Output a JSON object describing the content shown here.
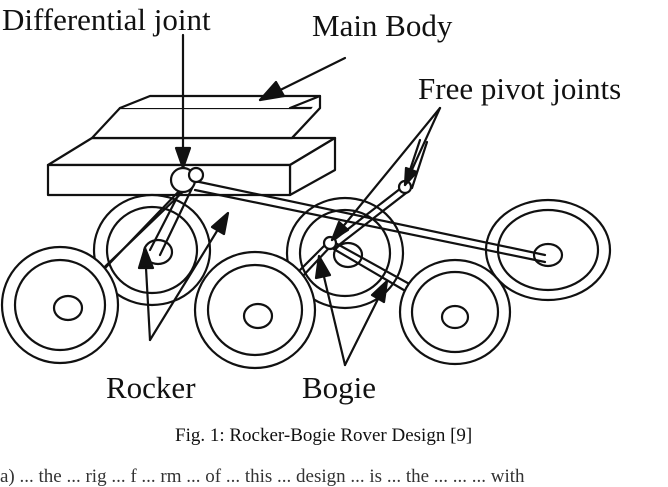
{
  "labels": {
    "differential_joint": "Differential joint",
    "main_body": "Main Body",
    "free_pivot_joints": "Free pivot joints",
    "rocker": "Rocker",
    "bogie": "Bogie"
  },
  "caption": "Fig. 1: Rocker-Bogie Rover Design [9]",
  "cut_text": "a)  ... the ... rig ... f ... rm ... of ... this ... design ... is ... the ... ... ... with"
}
